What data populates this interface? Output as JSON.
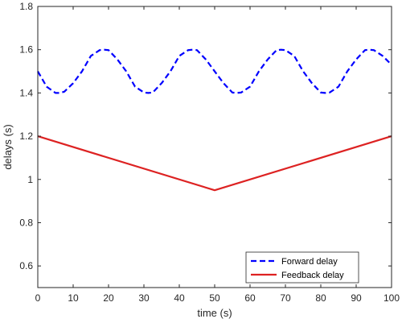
{
  "chart_data": {
    "type": "line",
    "title": "",
    "xlabel": "time (s)",
    "ylabel": "delays (s)",
    "xlim": [
      0,
      100
    ],
    "ylim": [
      0.5,
      1.8
    ],
    "xticks": [
      0,
      10,
      20,
      30,
      40,
      50,
      60,
      70,
      80,
      90,
      100
    ],
    "yticks": [
      0.6,
      0.8,
      1,
      1.2,
      1.4,
      1.6,
      1.8
    ],
    "xtick_labels": [
      "0",
      "10",
      "20",
      "30",
      "40",
      "50",
      "60",
      "70",
      "80",
      "90",
      "100"
    ],
    "ytick_labels": [
      "0.6",
      "0.8",
      "1",
      "1.2",
      "1.4",
      "1.6",
      "1.8"
    ],
    "grid": false,
    "legend_position": "bottom-right",
    "series": [
      {
        "name": "Forward delay",
        "style": "dashed",
        "color": "#0000FF",
        "x": [
          0,
          2.5,
          5,
          6.25,
          7.5,
          10,
          12.5,
          15,
          17.5,
          18.75,
          20,
          22.5,
          25,
          27.5,
          30,
          31.25,
          32.5,
          35,
          37.5,
          40,
          42.5,
          43.75,
          45,
          47.5,
          50,
          52.5,
          55,
          56.25,
          57.5,
          60,
          62.5,
          65,
          67.5,
          68.75,
          70,
          72.5,
          75,
          77.5,
          80,
          81.25,
          82.5,
          85,
          87.5,
          90,
          92.5,
          93.75,
          95,
          97.5,
          100
        ],
        "y": [
          1.5,
          1.429,
          1.4,
          1.4,
          1.406,
          1.445,
          1.5,
          1.571,
          1.598,
          1.6,
          1.598,
          1.555,
          1.5,
          1.429,
          1.402,
          1.4,
          1.402,
          1.445,
          1.5,
          1.571,
          1.598,
          1.6,
          1.598,
          1.555,
          1.5,
          1.445,
          1.402,
          1.4,
          1.402,
          1.429,
          1.5,
          1.555,
          1.598,
          1.6,
          1.598,
          1.571,
          1.5,
          1.445,
          1.402,
          1.4,
          1.402,
          1.429,
          1.5,
          1.555,
          1.598,
          1.6,
          1.598,
          1.571,
          1.53
        ]
      },
      {
        "name": "Feedback delay",
        "style": "solid",
        "color": "#DD2222",
        "x": [
          0,
          50,
          100
        ],
        "y": [
          1.2,
          0.95,
          1.2
        ]
      }
    ]
  }
}
